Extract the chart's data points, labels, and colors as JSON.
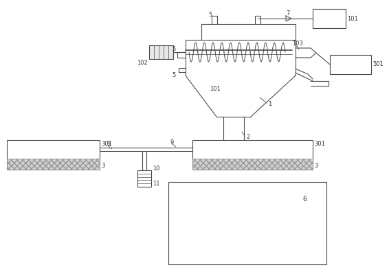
{
  "bg_color": "#ffffff",
  "line_color": "#4a4a4a",
  "fig_width": 5.66,
  "fig_height": 3.99,
  "dpi": 100
}
